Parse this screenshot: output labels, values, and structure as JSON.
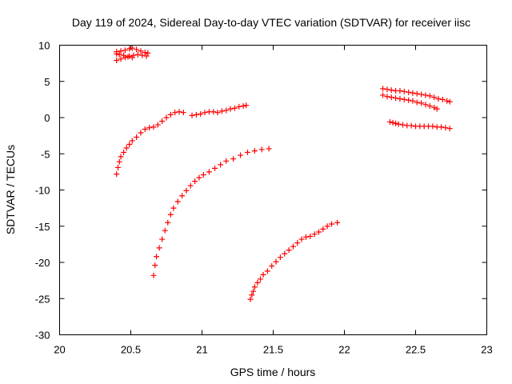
{
  "chart_data": {
    "type": "scatter",
    "title": "Day 119 of 2024, Sidereal Day-to-day VTEC variation (SDTVAR) for receiver iisc",
    "xlabel": "GPS time / hours",
    "ylabel": "SDTVAR / TECUs",
    "xlim": [
      20,
      23
    ],
    "ylim": [
      -30,
      10
    ],
    "xticks": [
      20,
      20.5,
      21,
      21.5,
      22,
      22.5,
      23
    ],
    "xtick_labels": [
      "20",
      "20.5",
      "21",
      "21.5",
      "22",
      "22.5",
      "23"
    ],
    "yticks": [
      10,
      5,
      0,
      -5,
      -10,
      -15,
      -20,
      -25,
      -30
    ],
    "ytick_labels": [
      "10",
      "5",
      "0",
      "-5",
      "-10",
      "-15",
      "-20",
      "-25",
      "-30"
    ],
    "grid": false,
    "marker": "+",
    "color": "#ff0000",
    "series": [
      {
        "name": "arc-top-cluster",
        "x": [
          20.4,
          20.43,
          20.46,
          20.49,
          20.51,
          20.54,
          20.57,
          20.6,
          20.62,
          20.4,
          20.43,
          20.46,
          20.49,
          20.52,
          20.55,
          20.58,
          20.61,
          20.4,
          20.42,
          20.45,
          20.48,
          20.51
        ],
        "y": [
          9.1,
          9.2,
          9.3,
          9.5,
          9.6,
          9.4,
          9.2,
          9.0,
          8.9,
          7.9,
          8.1,
          8.3,
          8.5,
          8.6,
          8.7,
          8.6,
          8.5,
          8.8,
          8.7,
          8.6,
          8.4,
          8.3
        ]
      },
      {
        "name": "arc-a",
        "x": [
          20.4,
          20.41,
          20.42,
          20.43,
          20.45,
          20.47,
          20.49,
          20.51,
          20.54,
          20.57,
          20.6,
          20.63,
          20.66,
          20.69,
          20.72,
          20.75,
          20.78,
          20.81,
          20.84,
          20.87
        ],
        "y": [
          -7.8,
          -6.9,
          -6.1,
          -5.4,
          -4.8,
          -4.2,
          -3.7,
          -3.2,
          -2.7,
          -2.1,
          -1.6,
          -1.4,
          -1.3,
          -1.0,
          -0.5,
          0.0,
          0.4,
          0.7,
          0.8,
          0.7
        ]
      },
      {
        "name": "arc-b",
        "x": [
          20.93,
          20.96,
          20.99,
          21.02,
          21.05,
          21.08,
          21.11,
          21.14,
          21.17,
          21.2,
          21.23,
          21.26,
          21.29,
          21.31
        ],
        "y": [
          0.3,
          0.4,
          0.5,
          0.7,
          0.8,
          0.8,
          0.7,
          0.9,
          1.0,
          1.2,
          1.3,
          1.5,
          1.6,
          1.7
        ]
      },
      {
        "name": "arc-c",
        "x": [
          20.66,
          20.67,
          20.68,
          20.7,
          20.72,
          20.74,
          20.76,
          20.78,
          20.8,
          20.83,
          20.86,
          20.89,
          20.92,
          20.95,
          20.98,
          21.01,
          21.05,
          21.09,
          21.13,
          21.17,
          21.22,
          21.27,
          21.32,
          21.37,
          21.42,
          21.47
        ],
        "y": [
          -21.8,
          -20.4,
          -19.2,
          -18.0,
          -16.8,
          -15.6,
          -14.5,
          -13.4,
          -12.5,
          -11.6,
          -10.8,
          -10.1,
          -9.4,
          -8.8,
          -8.3,
          -7.9,
          -7.5,
          -7.0,
          -6.5,
          -6.0,
          -5.7,
          -5.2,
          -4.8,
          -4.6,
          -4.4,
          -4.3
        ]
      },
      {
        "name": "arc-d",
        "x": [
          21.34,
          21.35,
          21.36,
          21.37,
          21.39,
          21.41,
          21.43,
          21.46,
          21.49,
          21.52,
          21.55,
          21.58,
          21.61,
          21.64,
          21.67,
          21.7,
          21.73,
          21.76,
          21.79,
          21.82,
          21.85,
          21.88,
          21.91,
          21.95
        ],
        "y": [
          -25.1,
          -24.5,
          -24.0,
          -23.4,
          -22.8,
          -22.3,
          -21.7,
          -21.2,
          -20.5,
          -19.9,
          -19.3,
          -18.8,
          -18.3,
          -17.8,
          -17.3,
          -16.8,
          -16.5,
          -16.4,
          -16.1,
          -15.8,
          -15.4,
          -15.0,
          -14.7,
          -14.5
        ]
      },
      {
        "name": "arc-e",
        "x": [
          22.27,
          22.3,
          22.33,
          22.36,
          22.39,
          22.42,
          22.45,
          22.48,
          22.51,
          22.54,
          22.57,
          22.6,
          22.63,
          22.66,
          22.69,
          22.72,
          22.74
        ],
        "y": [
          4.0,
          3.9,
          3.8,
          3.7,
          3.7,
          3.6,
          3.5,
          3.4,
          3.3,
          3.2,
          3.1,
          3.0,
          2.8,
          2.6,
          2.5,
          2.3,
          2.2
        ]
      },
      {
        "name": "arc-f",
        "x": [
          22.27,
          22.3,
          22.33,
          22.36,
          22.39,
          22.42,
          22.45,
          22.48,
          22.51,
          22.54,
          22.57,
          22.6,
          22.63,
          22.65
        ],
        "y": [
          3.1,
          2.9,
          2.8,
          2.7,
          2.6,
          2.5,
          2.4,
          2.3,
          2.1,
          2.0,
          1.8,
          1.6,
          1.4,
          1.2
        ]
      },
      {
        "name": "arc-g",
        "x": [
          22.32,
          22.34,
          22.36,
          22.38,
          22.41,
          22.44,
          22.47,
          22.5,
          22.53,
          22.56,
          22.59,
          22.62,
          22.65,
          22.68,
          22.71,
          22.74
        ],
        "y": [
          -0.6,
          -0.7,
          -0.8,
          -0.9,
          -1.0,
          -1.1,
          -1.1,
          -1.2,
          -1.2,
          -1.2,
          -1.2,
          -1.2,
          -1.3,
          -1.3,
          -1.4,
          -1.5
        ]
      }
    ]
  }
}
